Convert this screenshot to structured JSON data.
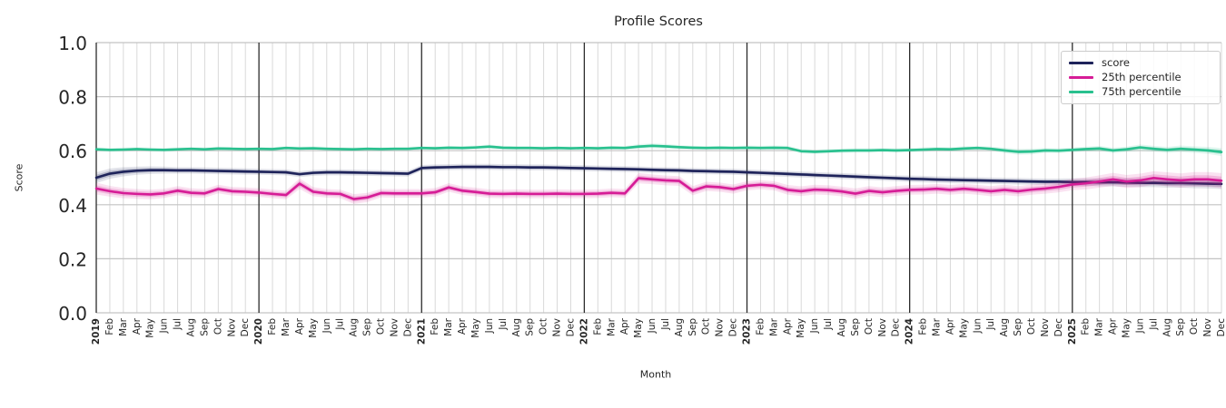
{
  "chart_data": {
    "type": "line",
    "title": "Profile Scores",
    "xlabel": "Month",
    "ylabel": "Score",
    "ylim": [
      0.0,
      1.0
    ],
    "yticks": [
      0.0,
      0.2,
      0.4,
      0.6,
      0.8,
      1.0
    ],
    "grid": true,
    "legend_position": "upper right",
    "x_tick_rotation": 90,
    "colors": {
      "minor_grid": "#d9d9d9",
      "major_grid": "#c3c3c3",
      "year_line": "#2b2b2b",
      "text": "#262626",
      "legend_border": "#cccccc"
    },
    "categories": [
      "2019",
      "Feb",
      "Mar",
      "Apr",
      "May",
      "Jun",
      "Jul",
      "Aug",
      "Sep",
      "Oct",
      "Nov",
      "Dec",
      "2020",
      "Feb",
      "Mar",
      "Apr",
      "May",
      "Jun",
      "Jul",
      "Aug",
      "Sep",
      "Oct",
      "Nov",
      "Dec",
      "2021",
      "Feb",
      "Mar",
      "Apr",
      "May",
      "Jun",
      "Jul",
      "Aug",
      "Sep",
      "Oct",
      "Nov",
      "Dec",
      "2022",
      "Feb",
      "Mar",
      "Apr",
      "May",
      "Jun",
      "Jul",
      "Aug",
      "Sep",
      "Oct",
      "Nov",
      "Dec",
      "2023",
      "Feb",
      "Mar",
      "Apr",
      "May",
      "Jun",
      "Jul",
      "Aug",
      "Sep",
      "Oct",
      "Nov",
      "Dec",
      "2024",
      "Feb",
      "Mar",
      "Apr",
      "May",
      "Jun",
      "Jul",
      "Aug",
      "Sep",
      "Oct",
      "Nov",
      "Dec",
      "2025",
      "Feb",
      "Mar",
      "Apr",
      "May",
      "Jun",
      "Jul",
      "Aug",
      "Sep",
      "Oct",
      "Nov",
      "Dec"
    ],
    "series": [
      {
        "name": "score",
        "color": "#1e235a",
        "values": [
          0.5,
          0.515,
          0.522,
          0.526,
          0.528,
          0.528,
          0.527,
          0.527,
          0.526,
          0.525,
          0.524,
          0.523,
          0.522,
          0.521,
          0.52,
          0.513,
          0.518,
          0.52,
          0.52,
          0.519,
          0.518,
          0.517,
          0.516,
          0.515,
          0.536,
          0.538,
          0.539,
          0.54,
          0.54,
          0.54,
          0.539,
          0.539,
          0.538,
          0.538,
          0.537,
          0.536,
          0.535,
          0.534,
          0.533,
          0.532,
          0.531,
          0.529,
          0.528,
          0.527,
          0.525,
          0.524,
          0.523,
          0.522,
          0.52,
          0.518,
          0.516,
          0.514,
          0.512,
          0.51,
          0.508,
          0.506,
          0.504,
          0.502,
          0.5,
          0.498,
          0.496,
          0.495,
          0.493,
          0.492,
          0.491,
          0.49,
          0.489,
          0.488,
          0.487,
          0.486,
          0.485,
          0.485,
          0.484,
          0.484,
          0.483,
          0.483,
          0.482,
          0.481,
          0.481,
          0.48,
          0.48,
          0.479,
          0.478,
          0.477
        ],
        "band_halfwidth": [
          0.02,
          0.019,
          0.017,
          0.015,
          0.014,
          0.013,
          0.012,
          0.012,
          0.012,
          0.012,
          0.012,
          0.012,
          0.011,
          0.011,
          0.011,
          0.011,
          0.011,
          0.011,
          0.011,
          0.011,
          0.011,
          0.011,
          0.011,
          0.011,
          0.011,
          0.011,
          0.011,
          0.011,
          0.011,
          0.011,
          0.011,
          0.011,
          0.011,
          0.011,
          0.011,
          0.011,
          0.011,
          0.011,
          0.011,
          0.011,
          0.011,
          0.011,
          0.011,
          0.011,
          0.011,
          0.011,
          0.011,
          0.011,
          0.011,
          0.011,
          0.011,
          0.011,
          0.011,
          0.011,
          0.011,
          0.011,
          0.011,
          0.011,
          0.011,
          0.011,
          0.012,
          0.012,
          0.012,
          0.012,
          0.012,
          0.012,
          0.012,
          0.012,
          0.012,
          0.012,
          0.012,
          0.012,
          0.014,
          0.014,
          0.015,
          0.015,
          0.016,
          0.016,
          0.016,
          0.017,
          0.017,
          0.018,
          0.018,
          0.019
        ]
      },
      {
        "name": "25th percentile",
        "color": "#d61c96",
        "values": [
          0.46,
          0.45,
          0.443,
          0.44,
          0.438,
          0.442,
          0.452,
          0.444,
          0.442,
          0.458,
          0.45,
          0.448,
          0.445,
          0.44,
          0.436,
          0.478,
          0.448,
          0.442,
          0.44,
          0.421,
          0.427,
          0.443,
          0.442,
          0.442,
          0.442,
          0.446,
          0.464,
          0.452,
          0.447,
          0.441,
          0.44,
          0.441,
          0.44,
          0.44,
          0.441,
          0.44,
          0.44,
          0.441,
          0.444,
          0.442,
          0.498,
          0.494,
          0.49,
          0.488,
          0.452,
          0.468,
          0.465,
          0.458,
          0.47,
          0.474,
          0.47,
          0.455,
          0.45,
          0.456,
          0.454,
          0.449,
          0.441,
          0.451,
          0.446,
          0.451,
          0.455,
          0.456,
          0.459,
          0.455,
          0.459,
          0.455,
          0.45,
          0.455,
          0.45,
          0.456,
          0.46,
          0.466,
          0.475,
          0.479,
          0.486,
          0.494,
          0.486,
          0.49,
          0.499,
          0.494,
          0.49,
          0.494,
          0.494,
          0.489
        ],
        "band_halfwidth": [
          0.022,
          0.02,
          0.019,
          0.018,
          0.018,
          0.017,
          0.017,
          0.017,
          0.016,
          0.016,
          0.016,
          0.016,
          0.016,
          0.016,
          0.016,
          0.02,
          0.017,
          0.016,
          0.016,
          0.018,
          0.017,
          0.016,
          0.016,
          0.016,
          0.016,
          0.016,
          0.016,
          0.016,
          0.016,
          0.016,
          0.016,
          0.016,
          0.016,
          0.016,
          0.016,
          0.016,
          0.016,
          0.016,
          0.016,
          0.016,
          0.019,
          0.018,
          0.018,
          0.018,
          0.017,
          0.017,
          0.017,
          0.017,
          0.017,
          0.017,
          0.017,
          0.018,
          0.018,
          0.018,
          0.018,
          0.018,
          0.019,
          0.018,
          0.018,
          0.018,
          0.018,
          0.018,
          0.018,
          0.018,
          0.018,
          0.018,
          0.019,
          0.019,
          0.019,
          0.019,
          0.019,
          0.02,
          0.021,
          0.022,
          0.023,
          0.024,
          0.024,
          0.025,
          0.025,
          0.026,
          0.026,
          0.027,
          0.027,
          0.028
        ]
      },
      {
        "name": "75th percentile",
        "color": "#28c08e",
        "values": [
          0.605,
          0.603,
          0.604,
          0.606,
          0.604,
          0.603,
          0.605,
          0.607,
          0.605,
          0.608,
          0.607,
          0.606,
          0.607,
          0.606,
          0.61,
          0.608,
          0.609,
          0.607,
          0.606,
          0.605,
          0.607,
          0.606,
          0.607,
          0.607,
          0.61,
          0.609,
          0.611,
          0.61,
          0.612,
          0.615,
          0.611,
          0.61,
          0.61,
          0.609,
          0.61,
          0.609,
          0.61,
          0.609,
          0.611,
          0.61,
          0.615,
          0.618,
          0.616,
          0.613,
          0.611,
          0.61,
          0.611,
          0.61,
          0.611,
          0.61,
          0.611,
          0.61,
          0.598,
          0.596,
          0.598,
          0.6,
          0.601,
          0.601,
          0.602,
          0.601,
          0.602,
          0.604,
          0.606,
          0.605,
          0.608,
          0.61,
          0.607,
          0.601,
          0.596,
          0.597,
          0.601,
          0.6,
          0.603,
          0.606,
          0.608,
          0.601,
          0.605,
          0.612,
          0.607,
          0.603,
          0.607,
          0.604,
          0.601,
          0.595
        ],
        "band_halfwidth": [
          0.007,
          0.007,
          0.007,
          0.007,
          0.007,
          0.007,
          0.007,
          0.007,
          0.007,
          0.007,
          0.007,
          0.007,
          0.007,
          0.007,
          0.007,
          0.007,
          0.007,
          0.007,
          0.007,
          0.007,
          0.007,
          0.007,
          0.007,
          0.007,
          0.007,
          0.007,
          0.007,
          0.007,
          0.007,
          0.008,
          0.007,
          0.007,
          0.007,
          0.007,
          0.007,
          0.007,
          0.007,
          0.007,
          0.007,
          0.007,
          0.009,
          0.009,
          0.009,
          0.008,
          0.007,
          0.007,
          0.007,
          0.007,
          0.008,
          0.008,
          0.008,
          0.008,
          0.008,
          0.008,
          0.008,
          0.008,
          0.008,
          0.008,
          0.008,
          0.008,
          0.008,
          0.008,
          0.008,
          0.008,
          0.008,
          0.008,
          0.008,
          0.01,
          0.011,
          0.011,
          0.009,
          0.009,
          0.009,
          0.009,
          0.01,
          0.01,
          0.01,
          0.011,
          0.011,
          0.011,
          0.012,
          0.012,
          0.013,
          0.015
        ]
      }
    ]
  }
}
